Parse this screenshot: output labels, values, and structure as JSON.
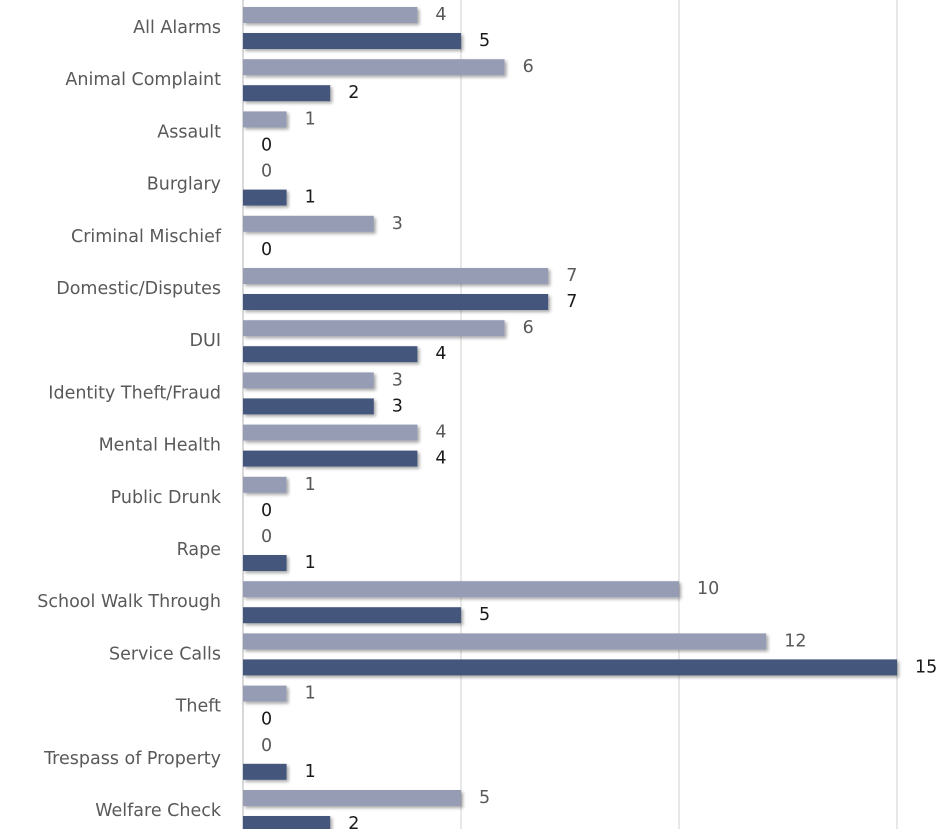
{
  "chart_data": {
    "type": "bar",
    "orientation": "horizontal",
    "categories": [
      "All Alarms",
      "Animal Complaint",
      "Assault",
      "Burglary",
      "Criminal Mischief",
      "Domestic/Disputes",
      "DUI",
      "Identity Theft/Fraud",
      "Mental Health",
      "Public Drunk",
      "Rape",
      "School Walk Through",
      "Service Calls",
      "Theft",
      "Trespass of Property",
      "Welfare Check"
    ],
    "series": [
      {
        "color": "#959cb3",
        "values": [
          4,
          6,
          1,
          0,
          3,
          7,
          6,
          3,
          4,
          1,
          0,
          10,
          12,
          1,
          0,
          5
        ]
      },
      {
        "color": "#44577c",
        "values": [
          5,
          2,
          0,
          1,
          0,
          7,
          4,
          3,
          4,
          0,
          1,
          5,
          15,
          0,
          1,
          2
        ]
      }
    ],
    "xlim": [
      0,
      15
    ],
    "grid_interval": 5,
    "grid": true,
    "title": "",
    "xlabel": "",
    "ylabel": "",
    "legend": "none",
    "data_labels": true
  }
}
